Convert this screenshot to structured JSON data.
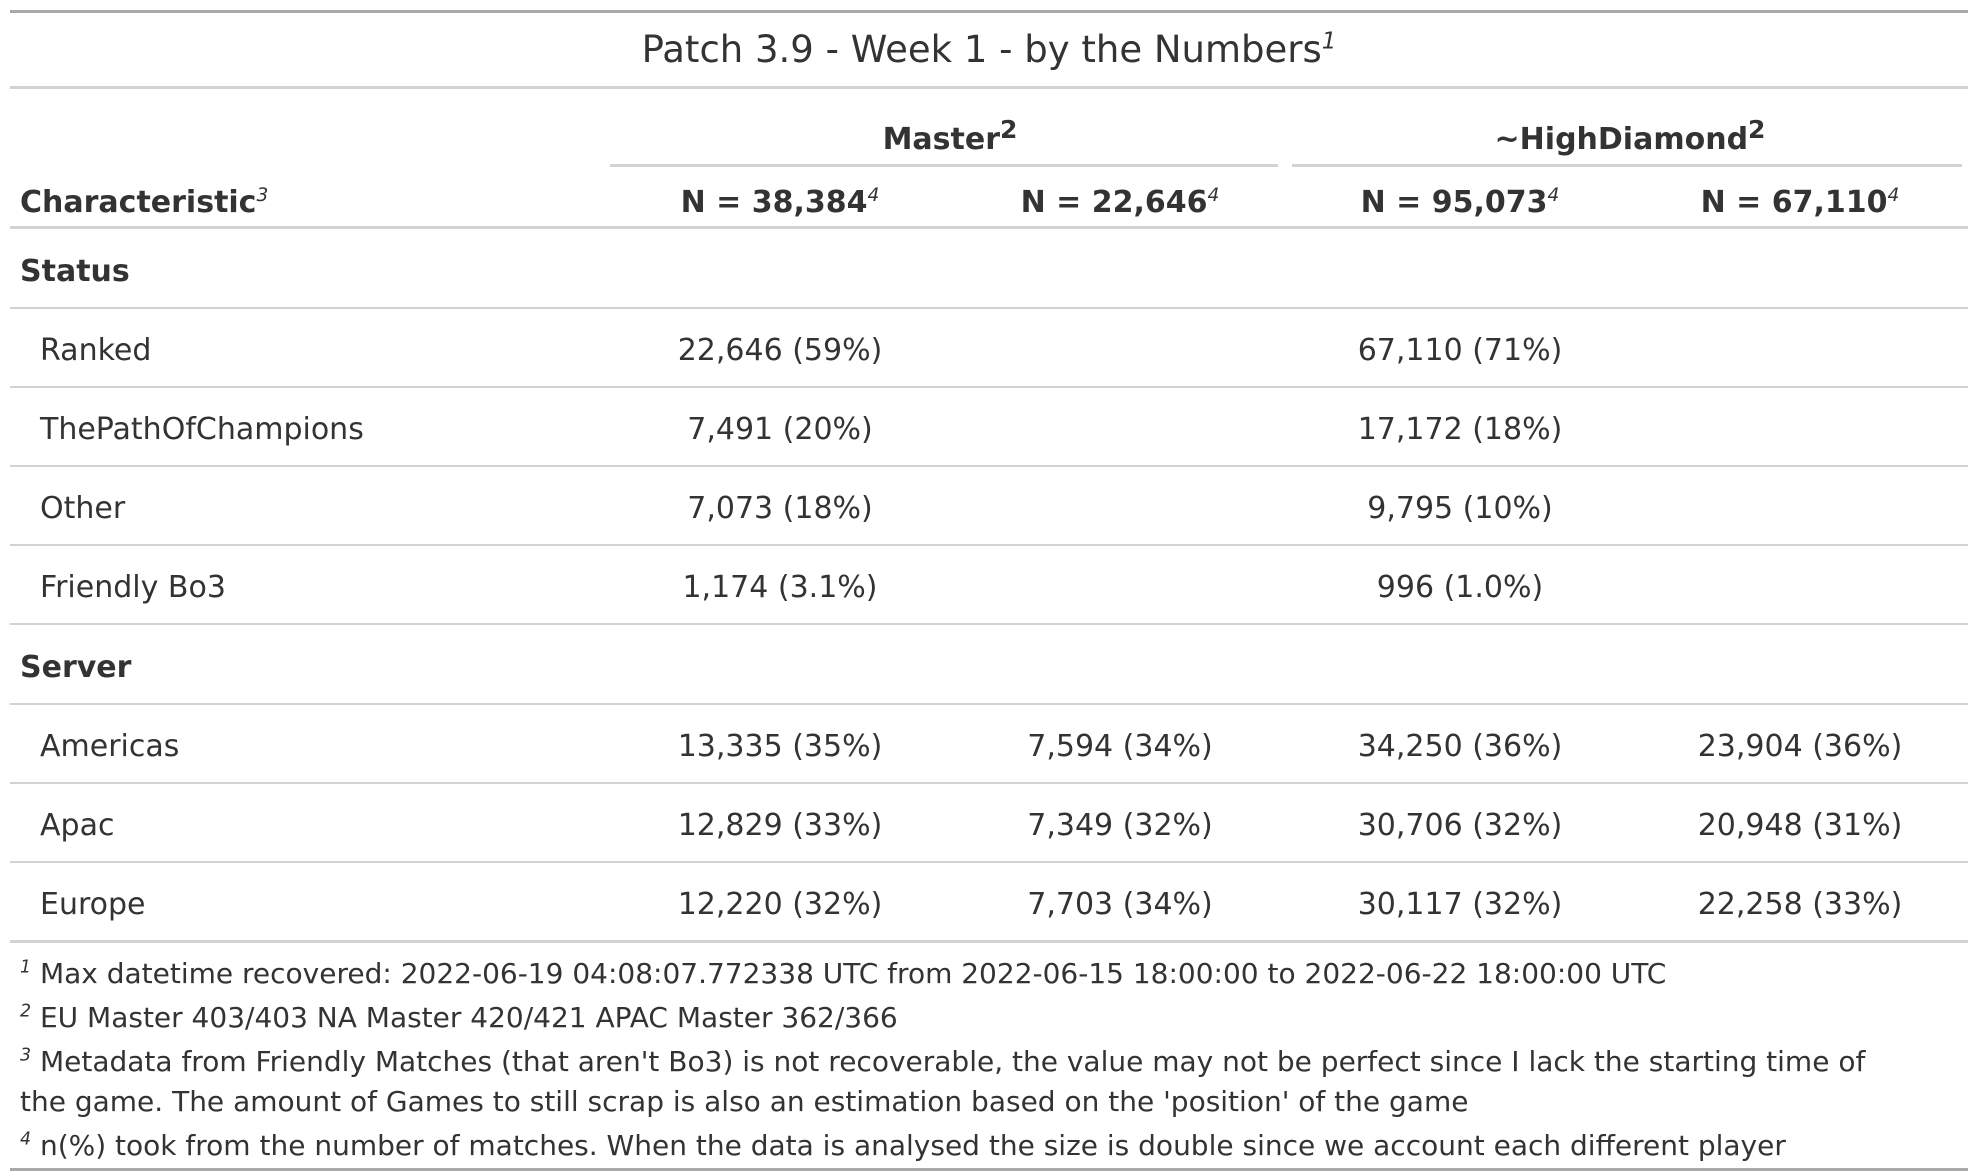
{
  "title": {
    "text": "Patch 3.9 - Week 1 - by the Numbers",
    "marker": "1"
  },
  "spanners": [
    {
      "label": "Master",
      "marker": "2"
    },
    {
      "label": "~HighDiamond",
      "marker": "2"
    }
  ],
  "columns": {
    "characteristic": {
      "label": "Characteristic",
      "marker": "3"
    },
    "n": [
      {
        "label": "N = 38,384",
        "marker": "4"
      },
      {
        "label": "N = 22,646",
        "marker": "4"
      },
      {
        "label": "N = 95,073",
        "marker": "4"
      },
      {
        "label": "N = 67,110",
        "marker": "4"
      }
    ]
  },
  "groups": [
    {
      "label": "Status",
      "rows": [
        {
          "label": "Ranked",
          "values": [
            "22,646 (59%)",
            "",
            "67,110 (71%)",
            ""
          ]
        },
        {
          "label": "ThePathOfChampions",
          "values": [
            "7,491 (20%)",
            "",
            "17,172 (18%)",
            ""
          ]
        },
        {
          "label": "Other",
          "values": [
            "7,073 (18%)",
            "",
            "9,795 (10%)",
            ""
          ]
        },
        {
          "label": "Friendly Bo3",
          "values": [
            "1,174 (3.1%)",
            "",
            "996 (1.0%)",
            ""
          ]
        }
      ]
    },
    {
      "label": "Server",
      "rows": [
        {
          "label": "Americas",
          "values": [
            "13,335 (35%)",
            "7,594 (34%)",
            "34,250 (36%)",
            "23,904 (36%)"
          ]
        },
        {
          "label": "Apac",
          "values": [
            "12,829 (33%)",
            "7,349 (32%)",
            "30,706 (32%)",
            "20,948 (31%)"
          ]
        },
        {
          "label": "Europe",
          "values": [
            "12,220 (32%)",
            "7,703 (34%)",
            "30,117 (32%)",
            "22,258 (33%)"
          ]
        }
      ]
    }
  ],
  "footnotes": [
    {
      "marker": "1",
      "text": "Max datetime recovered: 2022-06-19 04:08:07.772338 UTC from 2022-06-15 18:00:00 to 2022-06-22 18:00:00 UTC"
    },
    {
      "marker": "2",
      "text": "EU Master 403/403 NA Master 420/421 APAC Master 362/366"
    },
    {
      "marker": "3",
      "text": "Metadata from Friendly Matches (that aren't Bo3) is not recoverable, the value may not be perfect since I lack the starting time of the game. The amount of Games to still scrap is also an estimation based on the 'position' of the game"
    },
    {
      "marker": "4",
      "text": "n(%) took from the number of matches. When the data is analysed the size is double since we account each different player"
    }
  ]
}
